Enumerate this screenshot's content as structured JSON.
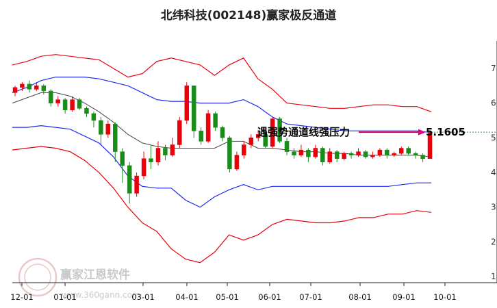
{
  "header": {
    "title": "北纬科技(002148)赢家极反通道"
  },
  "chart_data": {
    "type": "candlestick",
    "title": "北纬科技(002148)赢家极反通道",
    "x_ticks": [
      "12-01",
      "01-01",
      "03-01",
      "04-01",
      "05-01",
      "06-01",
      "07-01",
      "08-01",
      "09-01",
      "10-01"
    ],
    "y_ticks": [
      "1",
      "2",
      "3",
      "4",
      "5",
      "6",
      "7"
    ],
    "ylim": [
      1,
      7.3
    ],
    "grid": false,
    "annotation": {
      "label": "遇强势通道线强压力",
      "price": "5.1605",
      "value": 5.1605
    },
    "colors": {
      "up": "#e8000b",
      "down": "#1a8c1a",
      "upper_outer": "#e8000b",
      "upper_inner": "#1e2aee",
      "mid": "#444444",
      "lower_inner": "#1e2aee",
      "lower_outer": "#e8000b",
      "arrow": "#e0007a"
    },
    "bands": {
      "upper_outer": [
        7.1,
        7.2,
        7.35,
        7.4,
        7.35,
        7.3,
        7.25,
        7.0,
        6.75,
        6.85,
        7.2,
        7.3,
        7.2,
        7.1,
        6.8,
        7.1,
        7.3,
        6.7,
        6.4,
        6.0,
        5.95,
        5.9,
        5.85,
        5.85,
        5.9,
        5.95,
        5.95,
        5.9,
        5.9,
        5.75
      ],
      "upper_inner": [
        6.3,
        6.45,
        6.65,
        6.75,
        6.75,
        6.75,
        6.7,
        6.6,
        6.5,
        6.3,
        6.1,
        6.05,
        6.05,
        6.0,
        6.0,
        6.0,
        6.1,
        5.9,
        5.6,
        5.4,
        5.35,
        5.3,
        5.25,
        5.2,
        5.2,
        5.2,
        5.2,
        5.2,
        5.2,
        5.15
      ],
      "mid": [
        6.0,
        6.15,
        6.3,
        6.3,
        6.2,
        6.0,
        5.75,
        5.45,
        5.1,
        4.85,
        4.75,
        4.7,
        4.7,
        4.7,
        4.7,
        4.9,
        4.9,
        4.7,
        4.7,
        4.65,
        4.6,
        4.6,
        4.55,
        4.55,
        4.5,
        4.5,
        4.5,
        4.5,
        4.5,
        4.45
      ],
      "lower_inner": [
        5.3,
        5.3,
        5.35,
        5.3,
        5.25,
        5.05,
        4.85,
        4.45,
        3.9,
        3.6,
        3.55,
        3.55,
        3.2,
        3.0,
        3.3,
        3.5,
        3.65,
        3.5,
        3.6,
        3.6,
        3.6,
        3.6,
        3.6,
        3.6,
        3.6,
        3.6,
        3.6,
        3.65,
        3.7,
        3.7
      ],
      "lower_outer": [
        4.65,
        4.7,
        4.75,
        4.7,
        4.6,
        4.35,
        4.0,
        3.55,
        3.0,
        2.55,
        2.3,
        1.8,
        1.5,
        1.4,
        1.7,
        2.2,
        2.05,
        2.2,
        2.5,
        2.65,
        2.6,
        2.55,
        2.55,
        2.6,
        2.7,
        2.7,
        2.8,
        2.8,
        2.9,
        2.85
      ]
    },
    "candles": [
      [
        6.3,
        6.45,
        6.5,
        6.2
      ],
      [
        6.45,
        6.55,
        6.6,
        6.35
      ],
      [
        6.55,
        6.4,
        6.65,
        6.3
      ],
      [
        6.4,
        6.5,
        6.6,
        6.35
      ],
      [
        6.5,
        6.35,
        6.55,
        6.25
      ],
      [
        6.35,
        6.0,
        6.4,
        5.9
      ],
      [
        6.0,
        6.1,
        6.2,
        5.9
      ],
      [
        6.1,
        5.8,
        6.15,
        5.7
      ],
      [
        5.8,
        6.1,
        6.2,
        5.75
      ],
      [
        6.1,
        5.85,
        6.15,
        5.8
      ],
      [
        5.85,
        5.7,
        5.9,
        5.6
      ],
      [
        5.7,
        5.5,
        5.75,
        5.3
      ],
      [
        5.5,
        5.1,
        5.6,
        4.8
      ],
      [
        5.1,
        5.4,
        5.5,
        5.0
      ],
      [
        5.4,
        4.6,
        5.45,
        4.3
      ],
      [
        4.6,
        4.2,
        4.7,
        3.7
      ],
      [
        4.2,
        3.4,
        4.3,
        3.1
      ],
      [
        3.4,
        3.9,
        4.0,
        3.3
      ],
      [
        3.9,
        4.4,
        4.6,
        3.8
      ],
      [
        4.4,
        4.3,
        4.8,
        4.1
      ],
      [
        4.3,
        4.7,
        4.9,
        4.2
      ],
      [
        4.7,
        4.5,
        4.8,
        4.35
      ],
      [
        4.5,
        4.8,
        5.0,
        4.45
      ],
      [
        4.8,
        5.5,
        5.6,
        4.7
      ],
      [
        5.5,
        6.5,
        6.6,
        5.4
      ],
      [
        6.5,
        5.2,
        6.5,
        5.0
      ],
      [
        5.2,
        4.9,
        5.3,
        4.8
      ],
      [
        4.9,
        5.7,
        5.8,
        4.85
      ],
      [
        5.7,
        5.3,
        5.75,
        5.2
      ],
      [
        5.3,
        5.0,
        5.35,
        4.9
      ],
      [
        5.0,
        4.1,
        5.05,
        4.0
      ],
      [
        4.1,
        4.5,
        4.6,
        4.05
      ],
      [
        4.5,
        4.8,
        4.9,
        4.4
      ],
      [
        4.8,
        5.0,
        5.1,
        4.7
      ],
      [
        5.0,
        5.1,
        5.2,
        4.9
      ],
      [
        5.1,
        4.75,
        5.2,
        4.7
      ],
      [
        4.75,
        5.55,
        5.6,
        4.7
      ],
      [
        5.55,
        4.9,
        5.6,
        4.85
      ],
      [
        4.9,
        4.6,
        5.0,
        4.5
      ],
      [
        4.6,
        4.5,
        4.7,
        4.4
      ],
      [
        4.5,
        4.65,
        4.8,
        4.45
      ],
      [
        4.65,
        4.45,
        4.7,
        4.3
      ],
      [
        4.45,
        4.7,
        4.8,
        4.4
      ],
      [
        4.7,
        4.3,
        4.75,
        4.2
      ],
      [
        4.3,
        4.6,
        4.7,
        4.25
      ],
      [
        4.6,
        4.4,
        4.65,
        4.3
      ],
      [
        4.4,
        4.55,
        4.6,
        4.35
      ],
      [
        4.55,
        4.5,
        4.6,
        4.4
      ],
      [
        4.5,
        4.6,
        4.7,
        4.45
      ],
      [
        4.6,
        4.45,
        4.65,
        4.4
      ],
      [
        4.45,
        4.5,
        4.6,
        4.4
      ],
      [
        4.5,
        4.65,
        4.7,
        4.45
      ],
      [
        4.65,
        4.5,
        4.7,
        4.4
      ],
      [
        4.5,
        4.55,
        4.6,
        4.45
      ],
      [
        4.55,
        4.7,
        4.75,
        4.5
      ],
      [
        4.7,
        4.55,
        4.75,
        4.5
      ],
      [
        4.55,
        4.5,
        4.6,
        4.4
      ],
      [
        4.5,
        4.4,
        4.55,
        4.3
      ],
      [
        4.4,
        5.15,
        5.2,
        4.4
      ]
    ]
  },
  "watermark": {
    "name": "赢家江恩软件",
    "url": "www.360gann.com",
    "logo_text": "赢家江恩"
  }
}
